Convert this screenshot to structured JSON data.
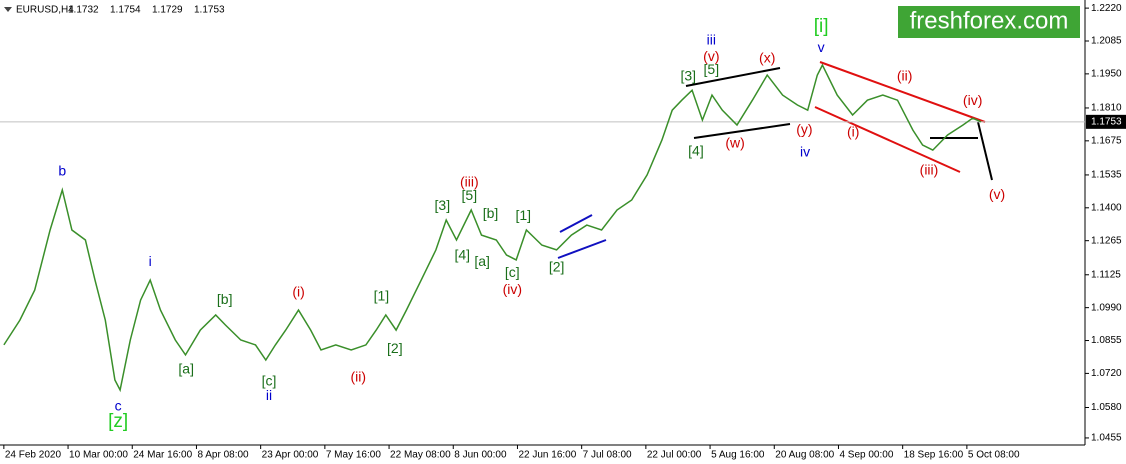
{
  "chart_data": {
    "type": "line",
    "symbol": "EURUSD,H4",
    "ohlc": [
      1.1732,
      1.1754,
      1.1729,
      1.1753
    ],
    "last_price": 1.1753,
    "watermark": "freshforex.com",
    "xlim": [
      -0.06,
      16.84
    ],
    "xticks": [
      {
        "value": 0,
        "label": "24 Feb 2020"
      },
      {
        "value": 1,
        "label": "10 Mar 00:00"
      },
      {
        "value": 2,
        "label": "24 Mar 16:00"
      },
      {
        "value": 3,
        "label": "8 Apr 08:00"
      },
      {
        "value": 4,
        "label": "23 Apr 00:00"
      },
      {
        "value": 5,
        "label": "7 May 16:00"
      },
      {
        "value": 6,
        "label": "22 May 08:00"
      },
      {
        "value": 7,
        "label": "8 Jun 00:00"
      },
      {
        "value": 8,
        "label": "22 Jun 16:00"
      },
      {
        "value": 9,
        "label": "7 Jul 08:00"
      },
      {
        "value": 10,
        "label": "22 Jul 00:00"
      },
      {
        "value": 11,
        "label": "5 Aug 16:00"
      },
      {
        "value": 12,
        "label": "20 Aug 08:00"
      },
      {
        "value": 13,
        "label": "4 Sep 00:00"
      },
      {
        "value": 14,
        "label": "18 Sep 16:00"
      },
      {
        "value": 15,
        "label": "5 Oct 08:00"
      }
    ],
    "ylim": [
      1.0426,
      1.2241
    ],
    "yticks": [
      {
        "value": 1.222,
        "label": "1.2220"
      },
      1.2085,
      {
        "value": 1.195,
        "label": "1.1950"
      },
      {
        "value": 1.181,
        "label": "1.1810"
      },
      1.1675,
      1.1535,
      {
        "value": 1.14,
        "label": "1.1400"
      },
      1.1265,
      1.1125,
      {
        "value": 1.099,
        "label": "1.0990"
      },
      1.0855,
      {
        "value": 1.072,
        "label": "1.0720"
      },
      {
        "value": 1.058,
        "label": "1.0580"
      },
      1.0455
    ],
    "series": [
      {
        "name": "EURUSD",
        "color": "#3a8f2a",
        "x": [
          0,
          0.25,
          0.48,
          0.72,
          0.91,
          1.06,
          1.27,
          1.42,
          1.58,
          1.73,
          1.81,
          1.97,
          2.13,
          2.28,
          2.44,
          2.67,
          2.83,
          3.06,
          3.3,
          3.45,
          3.69,
          3.92,
          4.08,
          4.23,
          4.39,
          4.59,
          4.78,
          4.94,
          5.17,
          5.41,
          5.64,
          5.8,
          5.95,
          6.11,
          6.27,
          6.5,
          6.73,
          6.89,
          7.05,
          7.28,
          7.44,
          7.67,
          7.83,
          7.98,
          8.14,
          8.38,
          8.61,
          8.84,
          9.08,
          9.31,
          9.55,
          9.78,
          10.02,
          10.25,
          10.41,
          10.56,
          10.72,
          10.88,
          11.03,
          11.19,
          11.42,
          11.66,
          11.89,
          12.13,
          12.36,
          12.52,
          12.67,
          12.75,
          12.98,
          13.22,
          13.45,
          13.69,
          13.92,
          14.16,
          14.31,
          14.47,
          14.7,
          14.94,
          15.09,
          15.22
        ],
        "values": [
          1.0837,
          1.0939,
          1.1062,
          1.1309,
          1.1473,
          1.1309,
          1.1268,
          1.1103,
          1.0939,
          1.0693,
          1.0652,
          1.0857,
          1.1021,
          1.1103,
          1.098,
          1.0857,
          1.0796,
          1.0898,
          1.096,
          1.0919,
          1.0857,
          1.0837,
          1.0775,
          1.0837,
          1.0898,
          1.098,
          1.0898,
          1.0816,
          1.0837,
          1.0816,
          1.0837,
          1.0898,
          1.096,
          1.0898,
          1.098,
          1.1103,
          1.1227,
          1.135,
          1.1268,
          1.1391,
          1.1288,
          1.1268,
          1.1206,
          1.1186,
          1.1309,
          1.1247,
          1.1227,
          1.1288,
          1.1329,
          1.1309,
          1.1391,
          1.1432,
          1.1535,
          1.1678,
          1.1801,
          1.1842,
          1.1883,
          1.176,
          1.1863,
          1.1801,
          1.174,
          1.1842,
          1.1945,
          1.1863,
          1.1822,
          1.1801,
          1.1945,
          1.1986,
          1.1863,
          1.1781,
          1.1842,
          1.1863,
          1.1842,
          1.1719,
          1.1658,
          1.1637,
          1.1699,
          1.174,
          1.1768,
          1.1753
        ]
      }
    ],
    "annotations": [
      {
        "text": "b",
        "color": "#0000cc",
        "x": 0.91,
        "y": 1.1547
      },
      {
        "text": "c",
        "color": "#0000cc",
        "x": 1.78,
        "y": 1.0582
      },
      {
        "text": "[z]",
        "color": "#22cc22",
        "x": 1.78,
        "y": 1.052
      },
      {
        "text": "i",
        "color": "#0000cc",
        "x": 2.28,
        "y": 1.1177
      },
      {
        "text": "ii",
        "color": "#0000cc",
        "x": 4.13,
        "y": 1.0627
      },
      {
        "text": "[a]",
        "color": "#1a6e1a",
        "x": 2.84,
        "y": 1.0734
      },
      {
        "text": "[b]",
        "color": "#1a6e1a",
        "x": 3.44,
        "y": 1.1021
      },
      {
        "text": "[c]",
        "color": "#1a6e1a",
        "x": 4.13,
        "y": 1.0685
      },
      {
        "text": "(i)",
        "color": "#cc0000",
        "x": 4.59,
        "y": 1.105
      },
      {
        "text": "(ii)",
        "color": "#cc0000",
        "x": 5.52,
        "y": 1.0701
      },
      {
        "text": "[1]",
        "color": "#1a6e1a",
        "x": 5.88,
        "y": 1.1034
      },
      {
        "text": "[2]",
        "color": "#1a6e1a",
        "x": 6.09,
        "y": 1.082
      },
      {
        "text": "[3]",
        "color": "#1a6e1a",
        "x": 6.83,
        "y": 1.1407
      },
      {
        "text": "(iii)",
        "color": "#cc0000",
        "x": 7.25,
        "y": 1.1502
      },
      {
        "text": "[5]",
        "color": "#1a6e1a",
        "x": 7.25,
        "y": 1.1448
      },
      {
        "text": "[4]",
        "color": "#1a6e1a",
        "x": 7.14,
        "y": 1.1202
      },
      {
        "text": "[a]",
        "color": "#1a6e1a",
        "x": 7.45,
        "y": 1.1177
      },
      {
        "text": "[b]",
        "color": "#1a6e1a",
        "x": 7.58,
        "y": 1.1374
      },
      {
        "text": "[c]",
        "color": "#1a6e1a",
        "x": 7.92,
        "y": 1.1132
      },
      {
        "text": "(iv)",
        "color": "#cc0000",
        "x": 7.92,
        "y": 1.1062
      },
      {
        "text": "[1]",
        "color": "#1a6e1a",
        "x": 8.09,
        "y": 1.1366
      },
      {
        "text": "[2]",
        "color": "#1a6e1a",
        "x": 8.61,
        "y": 1.1153
      },
      {
        "text": "[3]",
        "color": "#1a6e1a",
        "x": 10.66,
        "y": 1.1937
      },
      {
        "text": "[5]",
        "color": "#1a6e1a",
        "x": 11.02,
        "y": 1.1965
      },
      {
        "text": "iii",
        "color": "#0000cc",
        "x": 11.02,
        "y": 1.2085
      },
      {
        "text": "(v)",
        "color": "#cc0000",
        "x": 11.02,
        "y": 1.2019
      },
      {
        "text": "[4]",
        "color": "#1a6e1a",
        "x": 10.78,
        "y": 1.1629
      },
      {
        "text": "(w)",
        "color": "#cc0000",
        "x": 11.39,
        "y": 1.1662
      },
      {
        "text": "(x)",
        "color": "#cc0000",
        "x": 11.89,
        "y": 1.2011
      },
      {
        "text": "(y)",
        "color": "#cc0000",
        "x": 12.47,
        "y": 1.1719
      },
      {
        "text": "iv",
        "color": "#0000cc",
        "x": 12.48,
        "y": 1.1625
      },
      {
        "text": "[i]",
        "color": "#22cc22",
        "x": 12.73,
        "y": 1.2142
      },
      {
        "text": "v",
        "color": "#0000cc",
        "x": 12.73,
        "y": 1.2056
      },
      {
        "text": "(ii)",
        "color": "#cc0000",
        "x": 14.03,
        "y": 1.1937
      },
      {
        "text": "(i)",
        "color": "#cc0000",
        "x": 13.23,
        "y": 1.1707
      },
      {
        "text": "(iii)",
        "color": "#cc0000",
        "x": 14.41,
        "y": 1.1551
      },
      {
        "text": "(iv)",
        "color": "#cc0000",
        "x": 15.09,
        "y": 1.1838
      },
      {
        "text": "(v)",
        "color": "#cc0000",
        "x": 15.47,
        "y": 1.1452
      }
    ]
  }
}
